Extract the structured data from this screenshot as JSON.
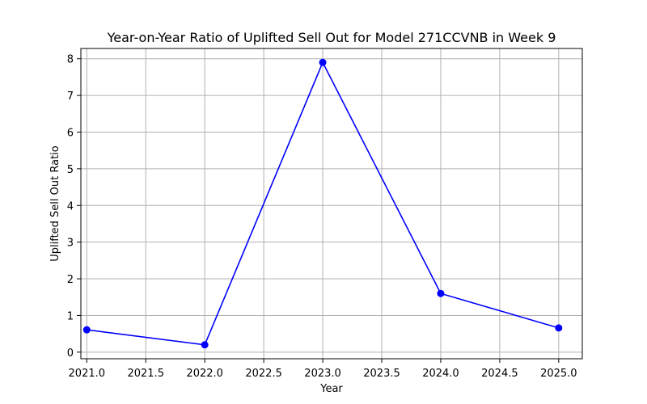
{
  "chart_data": {
    "type": "line",
    "title": "Year-on-Year Ratio of Uplifted Sell Out for Model 271CCVNB in Week 9",
    "xlabel": "Year",
    "ylabel": "Uplifted Sell Out Ratio",
    "x_ticks": [
      "2021.0",
      "2021.5",
      "2022.0",
      "2022.5",
      "2023.0",
      "2023.5",
      "2024.0",
      "2024.5",
      "2025.0"
    ],
    "y_ticks": [
      "0",
      "1",
      "2",
      "3",
      "4",
      "5",
      "6",
      "7",
      "8"
    ],
    "xlim": [
      2020.95,
      2025.2
    ],
    "ylim": [
      -0.18,
      8.28
    ],
    "grid": true,
    "series": [
      {
        "color": "#0000ff",
        "marker": "circle",
        "x": [
          2021,
          2022,
          2023,
          2024,
          2025
        ],
        "y": [
          0.61,
          0.2,
          7.9,
          1.6,
          0.66
        ]
      }
    ]
  }
}
